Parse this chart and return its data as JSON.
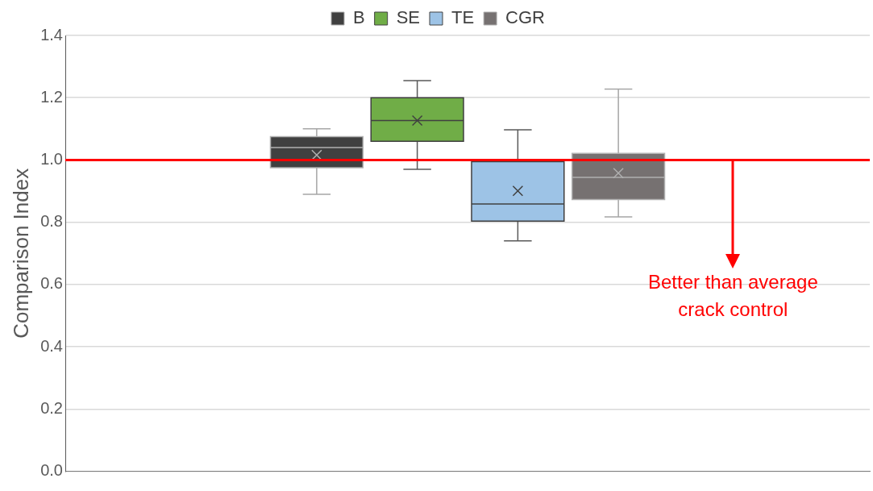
{
  "chart_data": {
    "type": "box",
    "ylabel": "Comparison Index",
    "categories": [
      null
    ],
    "series": [
      {
        "name": "B",
        "color": "#404040",
        "boxes": [
          {
            "low": 0.89,
            "q1": 0.975,
            "median": 1.04,
            "q3": 1.075,
            "high": 1.1,
            "mean": 1.016
          }
        ]
      },
      {
        "name": "SE",
        "color": "#70ad47",
        "boxes": [
          {
            "low": 0.97,
            "q1": 1.06,
            "median": 1.127,
            "q3": 1.2,
            "high": 1.255,
            "mean": 1.127
          }
        ]
      },
      {
        "name": "TE",
        "color": "#9dc3e6",
        "boxes": [
          {
            "low": 0.74,
            "q1": 0.804,
            "median": 0.859,
            "q3": 0.995,
            "high": 1.097,
            "mean": 0.901
          }
        ]
      },
      {
        "name": "CGR",
        "color": "#767171",
        "boxes": [
          {
            "low": 0.817,
            "q1": 0.873,
            "median": 0.944,
            "q3": 1.021,
            "high": 1.228,
            "mean": 0.958
          }
        ]
      }
    ],
    "ylim": [
      0,
      1.4
    ],
    "yticks": [
      {
        "value": 0,
        "label": "0.0"
      },
      {
        "value": 0.2,
        "label": "0.2"
      },
      {
        "value": 0.4,
        "label": "0.4"
      },
      {
        "value": 0.6,
        "label": "0.6"
      },
      {
        "value": 0.8,
        "label": "0.8"
      },
      {
        "value": 1,
        "label": "1.0"
      },
      {
        "value": 1.2,
        "label": "1.2"
      },
      {
        "value": 1.4,
        "label": "1.4"
      }
    ],
    "ref_lines": [
      {
        "axis": "y",
        "value": 1,
        "color": "#ff0000"
      }
    ],
    "annotations": [
      "Better than average crack control"
    ],
    "grid": "y",
    "legend": "top"
  }
}
